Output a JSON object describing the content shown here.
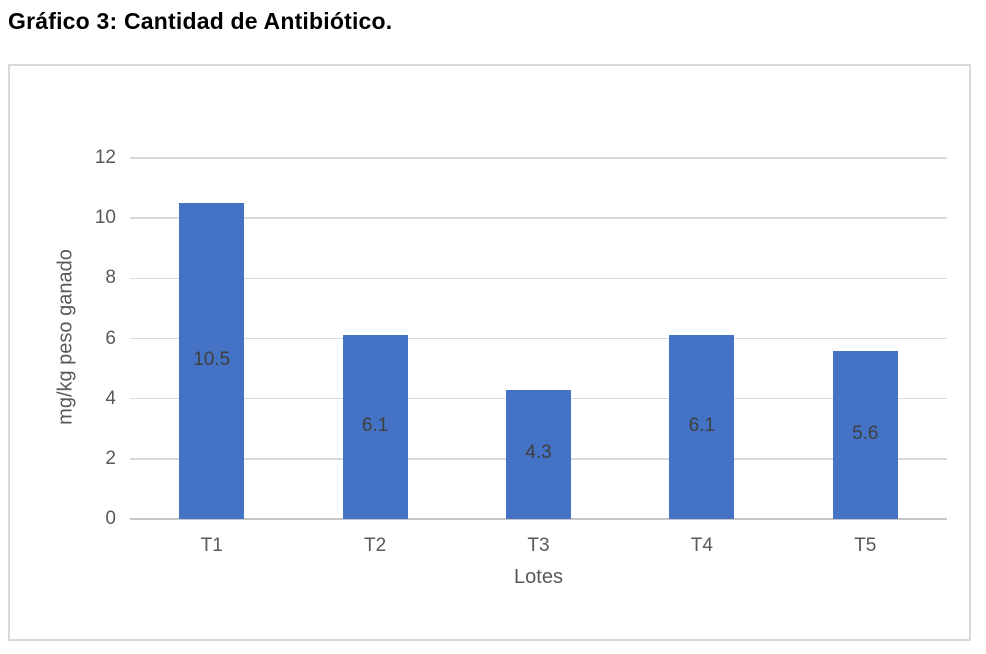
{
  "document": {
    "heading": "Gráfico 3: Cantidad de Antibiótico."
  },
  "chart_data": {
    "type": "bar",
    "title": "",
    "categories": [
      "T1",
      "T2",
      "T3",
      "T4",
      "T5"
    ],
    "values": [
      10.5,
      6.1,
      4.3,
      6.1,
      5.6
    ],
    "data_labels": [
      "10.5",
      "6.1",
      "4.3",
      "6.1",
      "5.6"
    ],
    "data_label_position": "center",
    "xlabel": "Lotes",
    "ylabel": "mg/kg peso ganado",
    "ylim": [
      0,
      12
    ],
    "yticks": [
      0,
      2,
      4,
      6,
      8,
      10,
      12
    ],
    "grid": true,
    "legend": "none",
    "bar_color": "#4472C4",
    "gridline_color": "#D9D9D9",
    "axis_line_color": "#C6C6C6",
    "tick_label_color": "#595959",
    "data_label_color": "#3F3F3F"
  }
}
